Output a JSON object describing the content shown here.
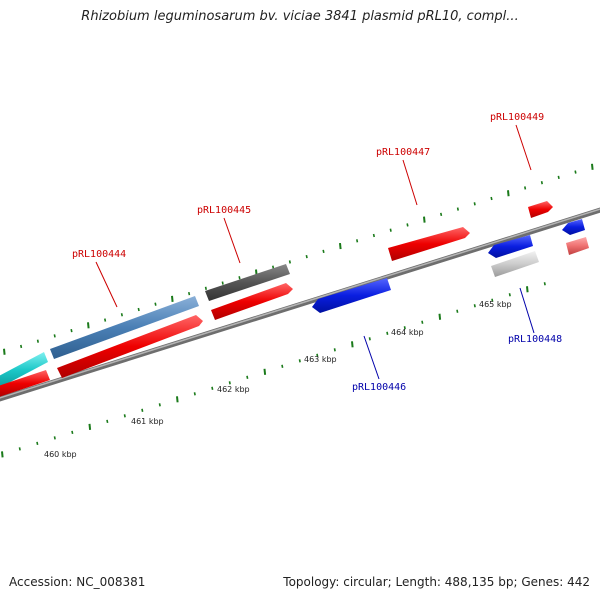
{
  "title": "Rhizobium leguminosarum bv. viciae 3841 plasmid pRL10, compl...",
  "footer": {
    "accession": "Accession: NC_008381",
    "summary": "Topology: circular; Length: 488,135 bp; Genes: 442"
  },
  "colors": {
    "forward_label": "#cc0000",
    "reverse_label": "#0000aa",
    "tick": "#1a7a1a",
    "backbone": "#8c8c8c"
  },
  "kbp_ticks": [
    "460 kbp",
    "461 kbp",
    "462 kbp",
    "463 kbp",
    "464 kbp",
    "465 kbp"
  ],
  "genes": [
    {
      "name": "pRL100444",
      "strand": "forward"
    },
    {
      "name": "pRL100445",
      "strand": "forward"
    },
    {
      "name": "pRL100446",
      "strand": "reverse"
    },
    {
      "name": "pRL100447",
      "strand": "forward"
    },
    {
      "name": "pRL100448",
      "strand": "reverse"
    },
    {
      "name": "pRL100449",
      "strand": "forward"
    }
  ]
}
